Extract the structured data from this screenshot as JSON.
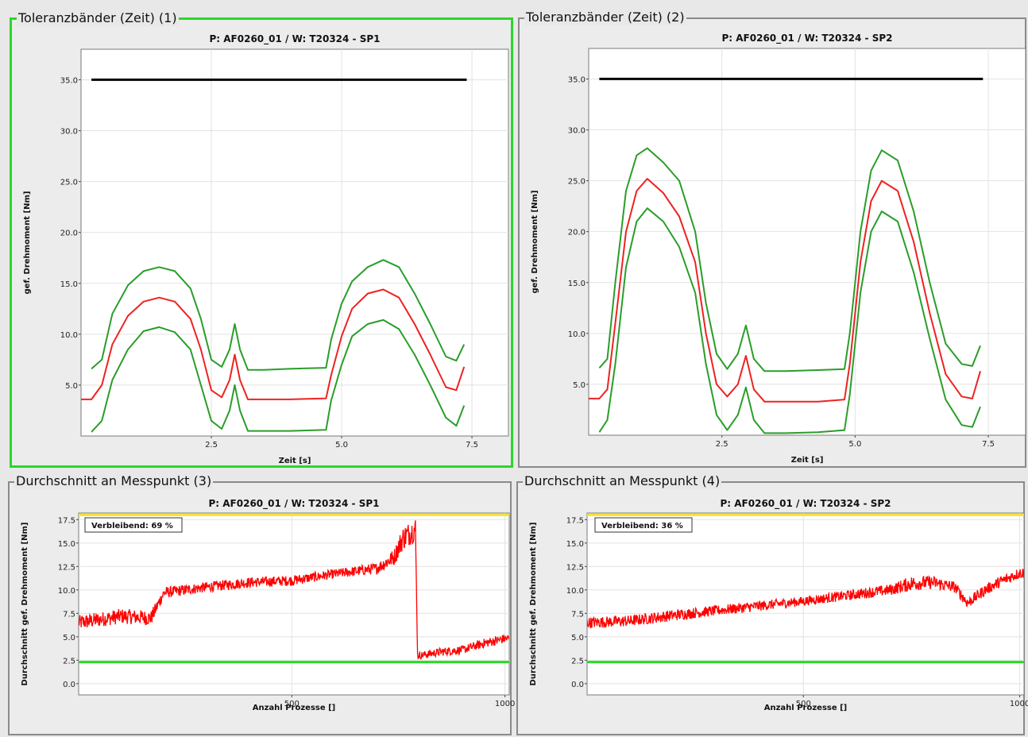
{
  "colors": {
    "band": "#2a9d2a",
    "mean": "#ee2222",
    "limit_black": "#000000",
    "upper_limit": "#f5e23a",
    "lower_limit": "#22dd22",
    "selected_border": "#29d829",
    "avg_line": "#ff0000"
  },
  "panels": [
    {
      "title": "Toleranzbänder (Zeit) (1)",
      "selected": true,
      "chart_data": {
        "type": "line",
        "title": "P: AF0260_01 / W: T20324 - SP1",
        "xlabel": "Zeit [s]",
        "ylabel": "gef. Drehmoment [Nm]",
        "xlim": [
          0,
          8.2
        ],
        "ylim": [
          0,
          38
        ],
        "xticks": [
          "2.5",
          "5.0",
          "7.5"
        ],
        "yticks": [
          "5.0",
          "10.0",
          "15.0",
          "20.0",
          "25.0",
          "30.0",
          "35.0"
        ],
        "grid": true,
        "series": [
          {
            "role": "limit",
            "color": "limit_black",
            "x": [
              0.2,
              7.4
            ],
            "y": [
              35,
              35
            ]
          },
          {
            "role": "upper",
            "color": "band",
            "x": [
              0.2,
              0.4,
              0.6,
              0.9,
              1.2,
              1.5,
              1.8,
              2.1,
              2.3,
              2.5,
              2.7,
              2.85,
              2.95,
              3.05,
              3.2,
              3.5,
              4.0,
              4.7,
              4.8,
              5.0,
              5.2,
              5.5,
              5.8,
              6.1,
              6.4,
              6.7,
              7.0,
              7.2,
              7.35
            ],
            "y": [
              6.6,
              7.5,
              12.0,
              14.8,
              16.2,
              16.6,
              16.2,
              14.5,
              11.5,
              7.5,
              6.8,
              8.5,
              11.0,
              8.5,
              6.5,
              6.5,
              6.6,
              6.7,
              9.5,
              13.0,
              15.2,
              16.6,
              17.3,
              16.6,
              14.0,
              11.0,
              7.8,
              7.4,
              9.0
            ]
          },
          {
            "role": "mean",
            "color": "mean",
            "x": [
              0.0,
              0.2,
              0.4,
              0.6,
              0.9,
              1.2,
              1.5,
              1.8,
              2.1,
              2.3,
              2.5,
              2.7,
              2.85,
              2.95,
              3.05,
              3.2,
              3.5,
              4.0,
              4.7,
              4.8,
              5.0,
              5.2,
              5.5,
              5.8,
              6.1,
              6.4,
              6.7,
              7.0,
              7.2,
              7.35
            ],
            "y": [
              3.6,
              3.6,
              5.0,
              9.0,
              11.8,
              13.2,
              13.6,
              13.2,
              11.5,
              8.5,
              4.5,
              3.8,
              5.5,
              8.0,
              5.5,
              3.6,
              3.6,
              3.6,
              3.7,
              6.0,
              9.8,
              12.5,
              14.0,
              14.4,
              13.6,
              11.0,
              8.0,
              4.8,
              4.5,
              6.8
            ]
          },
          {
            "role": "lower",
            "color": "band",
            "x": [
              0.2,
              0.4,
              0.6,
              0.9,
              1.2,
              1.5,
              1.8,
              2.1,
              2.3,
              2.5,
              2.7,
              2.85,
              2.95,
              3.05,
              3.2,
              3.5,
              4.0,
              4.7,
              4.8,
              5.0,
              5.2,
              5.5,
              5.8,
              6.1,
              6.4,
              6.7,
              7.0,
              7.2,
              7.35
            ],
            "y": [
              0.4,
              1.5,
              5.5,
              8.5,
              10.3,
              10.7,
              10.2,
              8.5,
              5.0,
              1.5,
              0.7,
              2.5,
              5.0,
              2.5,
              0.5,
              0.5,
              0.5,
              0.6,
              3.5,
              7.0,
              9.8,
              11.0,
              11.4,
              10.5,
              8.0,
              5.0,
              1.8,
              1.0,
              3.0
            ]
          }
        ]
      }
    },
    {
      "title": "Toleranzbänder (Zeit) (2)",
      "selected": false,
      "chart_data": {
        "type": "line",
        "title": "P: AF0260_01 / W: T20324 - SP2",
        "xlabel": "Zeit [s]",
        "ylabel": "gef. Drehmoment [Nm]",
        "xlim": [
          0,
          8.2
        ],
        "ylim": [
          0,
          38
        ],
        "xticks": [
          "2.5",
          "5.0",
          "7.5"
        ],
        "yticks": [
          "5.0",
          "10.0",
          "15.0",
          "20.0",
          "25.0",
          "30.0",
          "35.0"
        ],
        "grid": true,
        "series": [
          {
            "role": "limit",
            "color": "limit_black",
            "x": [
              0.2,
              7.4
            ],
            "y": [
              35,
              35
            ]
          },
          {
            "role": "upper",
            "color": "band",
            "x": [
              0.2,
              0.35,
              0.5,
              0.7,
              0.9,
              1.1,
              1.4,
              1.7,
              2.0,
              2.2,
              2.4,
              2.6,
              2.8,
              2.95,
              3.1,
              3.3,
              3.7,
              4.3,
              4.8,
              4.9,
              5.1,
              5.3,
              5.5,
              5.8,
              6.1,
              6.4,
              6.7,
              7.0,
              7.2,
              7.35
            ],
            "y": [
              6.6,
              7.5,
              15.0,
              24.0,
              27.5,
              28.2,
              26.8,
              25.0,
              20.0,
              13.0,
              8.0,
              6.5,
              8.0,
              10.8,
              7.5,
              6.3,
              6.3,
              6.4,
              6.5,
              10.0,
              20.0,
              26.0,
              28.0,
              27.0,
              22.0,
              15.0,
              9.0,
              7.0,
              6.8,
              8.8
            ]
          },
          {
            "role": "mean",
            "color": "mean",
            "x": [
              0.0,
              0.2,
              0.35,
              0.5,
              0.7,
              0.9,
              1.1,
              1.4,
              1.7,
              2.0,
              2.2,
              2.4,
              2.6,
              2.8,
              2.95,
              3.1,
              3.3,
              3.7,
              4.3,
              4.8,
              4.9,
              5.1,
              5.3,
              5.5,
              5.8,
              6.1,
              6.4,
              6.7,
              7.0,
              7.2,
              7.35
            ],
            "y": [
              3.6,
              3.6,
              4.5,
              11.0,
              20.0,
              24.0,
              25.2,
              23.8,
              21.5,
              17.0,
              10.0,
              5.0,
              3.8,
              5.0,
              7.8,
              4.5,
              3.3,
              3.3,
              3.3,
              3.5,
              7.0,
              17.0,
              23.0,
              25.0,
              24.0,
              19.0,
              12.0,
              6.0,
              3.8,
              3.6,
              6.3
            ]
          },
          {
            "role": "lower",
            "color": "band",
            "x": [
              0.2,
              0.35,
              0.5,
              0.7,
              0.9,
              1.1,
              1.4,
              1.7,
              2.0,
              2.2,
              2.4,
              2.6,
              2.8,
              2.95,
              3.1,
              3.3,
              3.7,
              4.3,
              4.8,
              4.9,
              5.1,
              5.3,
              5.5,
              5.8,
              6.1,
              6.4,
              6.7,
              7.0,
              7.2,
              7.35
            ],
            "y": [
              0.3,
              1.5,
              7.0,
              16.5,
              21.0,
              22.3,
              21.0,
              18.5,
              14.0,
              7.0,
              2.0,
              0.5,
              2.0,
              4.7,
              1.5,
              0.2,
              0.2,
              0.3,
              0.5,
              4.0,
              14.0,
              20.0,
              22.0,
              21.0,
              16.0,
              9.5,
              3.5,
              1.0,
              0.8,
              2.8
            ]
          }
        ]
      }
    },
    {
      "title": "Durchschnitt an Messpunkt (3)",
      "selected": false,
      "chart_data": {
        "type": "line",
        "title": "P: AF0260_01 / W: T20324 - SP1",
        "xlabel": "Anzahl Prozesse []",
        "ylabel": "Durchschnitt gef. Drehmoment [Nm]",
        "xlim": [
          0,
          1010
        ],
        "ylim": [
          -1.2,
          18.2
        ],
        "xticks": [
          "500",
          "1000"
        ],
        "xtick_values": [
          500,
          1000
        ],
        "yticks": [
          "0.0",
          "2.5",
          "5.0",
          "7.5",
          "10.0",
          "12.5",
          "15.0",
          "17.5"
        ],
        "grid": true,
        "badge": "Verbleibend: 69 %",
        "upper_limit": 18.0,
        "lower_limit": 2.3,
        "series": [
          {
            "role": "average",
            "color": "avg_line",
            "x": [
              0,
              100,
              170,
              200,
              300,
              400,
              500,
              600,
              700,
              740,
              760,
              790,
              795,
              800,
              850,
              900,
              950,
              1000,
              1010
            ],
            "y": [
              6.5,
              7.2,
              7.0,
              9.7,
              10.3,
              10.8,
              11.0,
              11.7,
              12.3,
              13.5,
              15.5,
              16.5,
              3.0,
              3.0,
              3.4,
              3.6,
              4.3,
              4.8,
              4.8
            ],
            "noise": [
              0.8,
              0.8,
              0.8,
              0.6,
              0.55,
              0.55,
              0.55,
              0.5,
              0.6,
              0.9,
              1.3,
              1.3,
              0.4,
              0.4,
              0.45,
              0.45,
              0.5,
              0.5,
              0.5
            ]
          }
        ]
      }
    },
    {
      "title": "Durchschnitt an Messpunkt (4)",
      "selected": false,
      "chart_data": {
        "type": "line",
        "title": "P: AF0260_01 / W: T20324 - SP2",
        "xlabel": "Anzahl Prozesse []",
        "ylabel": "Durchschnitt gef. Drehmoment [Nm]",
        "xlim": [
          0,
          1010
        ],
        "ylim": [
          -1.2,
          18.2
        ],
        "xticks": [
          "500",
          "1000"
        ],
        "xtick_values": [
          500,
          1000
        ],
        "yticks": [
          "0.0",
          "2.5",
          "5.0",
          "7.5",
          "10.0",
          "12.5",
          "15.0",
          "17.5"
        ],
        "grid": true,
        "badge": "Verbleibend: 36 %",
        "upper_limit": 18.0,
        "lower_limit": 2.3,
        "series": [
          {
            "role": "average",
            "color": "avg_line",
            "x": [
              0,
              100,
              200,
              300,
              400,
              500,
              600,
              700,
              750,
              800,
              850,
              880,
              920,
              960,
              1000,
              1010
            ],
            "y": [
              6.5,
              6.7,
              7.3,
              7.8,
              8.3,
              8.8,
              9.4,
              10.0,
              10.7,
              10.8,
              10.3,
              8.6,
              10.0,
              11.0,
              11.8,
              11.8
            ],
            "noise": [
              0.6,
              0.6,
              0.6,
              0.55,
              0.55,
              0.5,
              0.55,
              0.6,
              0.8,
              0.7,
              0.6,
              0.6,
              0.6,
              0.6,
              0.6,
              0.6
            ]
          }
        ]
      }
    }
  ]
}
